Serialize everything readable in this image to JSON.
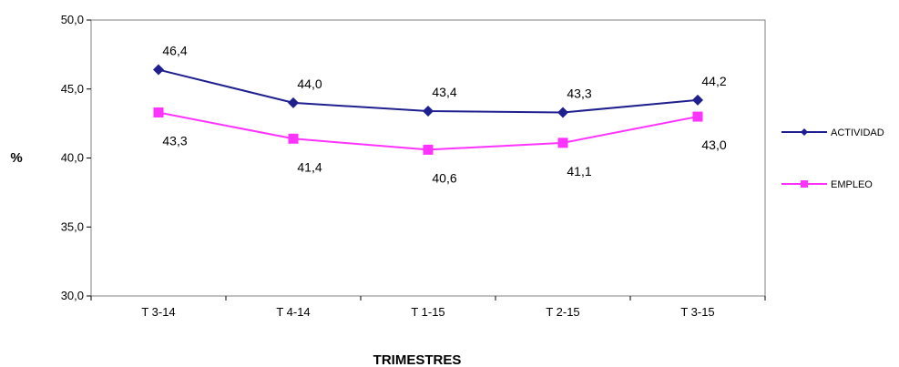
{
  "chart_data": {
    "type": "line",
    "categories": [
      "T 3-14",
      "T 4-14",
      "T 1-15",
      "T 2-15",
      "T 3-15"
    ],
    "series": [
      {
        "name": "ACTIVIDAD",
        "values": [
          46.4,
          44.0,
          43.4,
          43.3,
          44.2
        ],
        "labels": [
          "46,4",
          "44,0",
          "43,4",
          "43,3",
          "44,2"
        ],
        "color": "#1f1f8f",
        "marker": "diamond"
      },
      {
        "name": "EMPLEO",
        "values": [
          43.3,
          41.4,
          40.6,
          41.1,
          43.0
        ],
        "labels": [
          "43,3",
          "41,4",
          "40,6",
          "41,1",
          "43,0"
        ],
        "color": "#ff33ff",
        "marker": "square"
      }
    ],
    "title": "",
    "xlabel": "TRIMESTRES",
    "ylabel": "%",
    "ylim": [
      30,
      50
    ],
    "yticks": [
      "30,0",
      "35,0",
      "40,0",
      "45,0",
      "50,0"
    ],
    "grid": false,
    "legend_position": "right"
  }
}
